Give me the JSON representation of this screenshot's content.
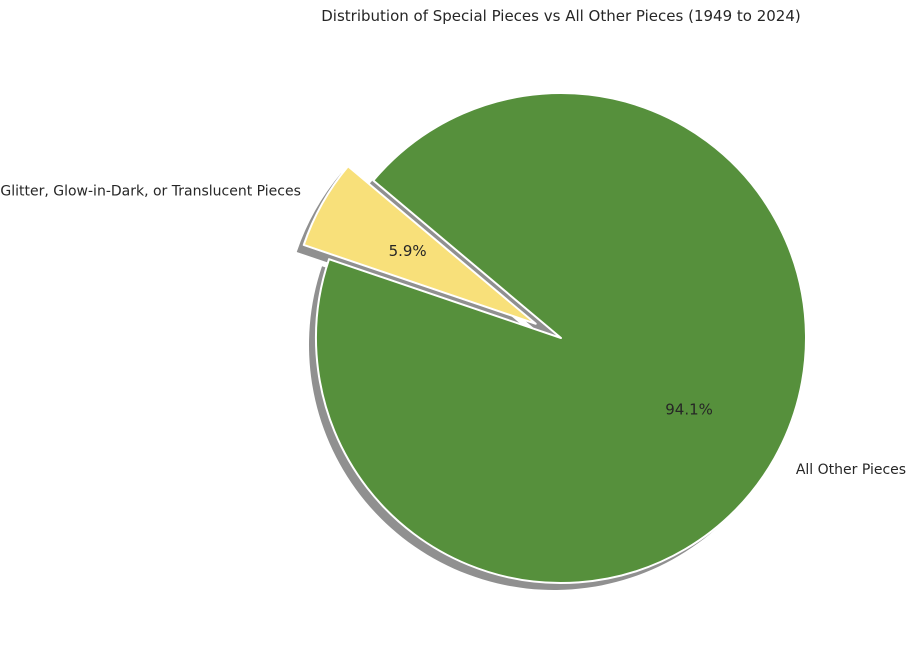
{
  "chart_data": {
    "type": "pie",
    "title": "Distribution of Special Pieces vs All Other Pieces (1949 to 2024)",
    "labels": [
      "Glitter, Glow-in-Dark, or Translucent Pieces",
      "All Other Pieces"
    ],
    "values": [
      5.9,
      94.1
    ],
    "percent_labels": [
      "5.9%",
      "94.1%"
    ],
    "colors": [
      "#F8E07A",
      "#56903C"
    ],
    "exploded": [
      true,
      false
    ],
    "shadow": true
  }
}
